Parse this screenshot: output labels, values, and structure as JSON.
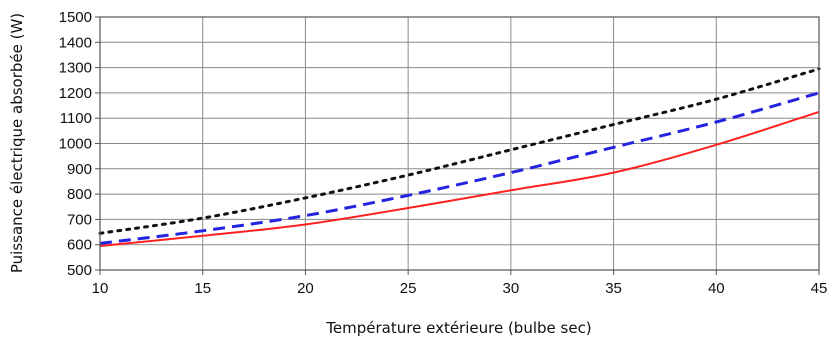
{
  "chart_data": {
    "type": "line",
    "xlabel": "Température extérieure (bulbe sec)",
    "ylabel": "Puissance électrique absorbée (W)",
    "xlim": [
      10,
      45
    ],
    "ylim": [
      500,
      1500
    ],
    "x_ticks": [
      10,
      15,
      20,
      25,
      30,
      35,
      40,
      45
    ],
    "y_ticks": [
      500,
      600,
      700,
      800,
      900,
      1000,
      1100,
      1200,
      1300,
      1400,
      1500
    ],
    "grid": true,
    "x": [
      10,
      15,
      20,
      25,
      30,
      35,
      40,
      45
    ],
    "series": [
      {
        "values": [
          595,
          635,
          680,
          745,
          815,
          885,
          995,
          1125
        ],
        "color": "#ff2020",
        "style": "solid"
      },
      {
        "values": [
          605,
          655,
          715,
          795,
          885,
          985,
          1085,
          1200
        ],
        "color": "#2424e0",
        "style": "dashed"
      },
      {
        "values": [
          645,
          705,
          785,
          875,
          975,
          1075,
          1175,
          1295
        ],
        "color": "#111111",
        "style": "dotted"
      }
    ]
  }
}
